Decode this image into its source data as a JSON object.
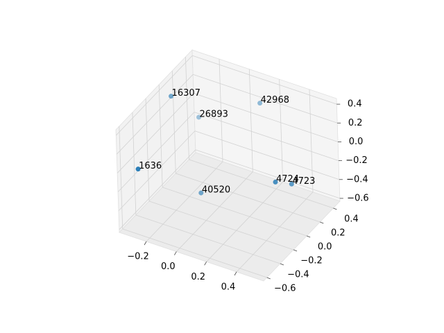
{
  "chart_data": {
    "type": "scatter3d",
    "labels": [
      "1636",
      "16307",
      "26893",
      "42968",
      "40520",
      "4724",
      "4723"
    ],
    "x": [
      -0.29,
      -0.32,
      -0.3,
      0.17,
      -0.14,
      0.52,
      0.55
    ],
    "y": [
      -0.54,
      0.04,
      0.39,
      0.27,
      0.04,
      -0.3,
      -0.13
    ],
    "z": [
      0.01,
      0.34,
      -0.13,
      0.36,
      -0.59,
      0.13,
      0.0
    ],
    "color": "#1f77b4",
    "xlim": [
      -0.38,
      0.58
    ],
    "ylim": [
      -0.65,
      0.5
    ],
    "zlim": [
      -0.63,
      0.46
    ],
    "xticks": [
      {
        "value": -0.2,
        "label": "−0.2"
      },
      {
        "value": 0.0,
        "label": "0.0"
      },
      0.2,
      0.4
    ],
    "yticks": [
      {
        "value": -0.6,
        "label": "−0.6"
      },
      {
        "value": -0.4,
        "label": "−0.4"
      },
      {
        "value": -0.2,
        "label": "−0.2"
      },
      {
        "value": 0.0,
        "label": "0.0"
      },
      0.2,
      0.4
    ],
    "zticks": [
      {
        "value": -0.6,
        "label": "−0.6"
      },
      {
        "value": -0.4,
        "label": "−0.4"
      },
      {
        "value": -0.2,
        "label": "−0.2"
      },
      {
        "value": 0.0,
        "label": "0.0"
      },
      0.2,
      0.4
    ],
    "grid": true
  }
}
